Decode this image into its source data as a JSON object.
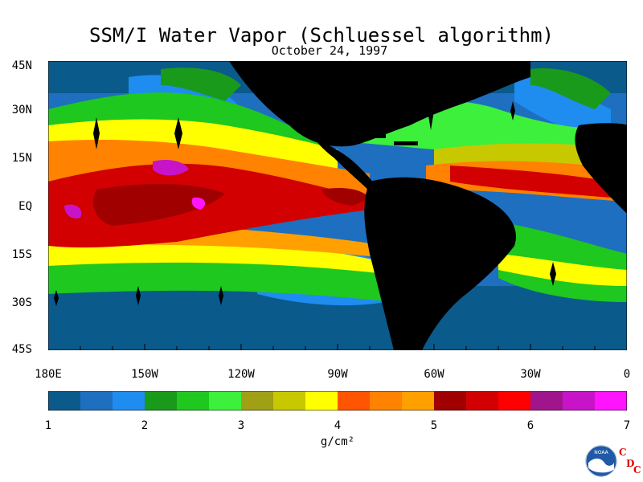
{
  "title": "SSM/I Water Vapor (Schluessel algorithm)",
  "subtitle": "October 24, 1997",
  "lat_labels": [
    "45N",
    "30N",
    "15N",
    "EQ",
    "15S",
    "30S",
    "45S"
  ],
  "lon_labels": [
    "180E",
    "150W",
    "120W",
    "90W",
    "60W",
    "30W",
    "0"
  ],
  "colorbar": {
    "colors": [
      "#0a5a8c",
      "#1e6fbf",
      "#1f8cf0",
      "#1a9a1a",
      "#1ec81e",
      "#3cf03c",
      "#a0a014",
      "#c8c800",
      "#ffff00",
      "#ff5500",
      "#ff8200",
      "#ffa000",
      "#a00000",
      "#d20000",
      "#ff0000",
      "#a0148c",
      "#c814c8",
      "#ff14ff"
    ],
    "tick_labels": [
      "1",
      "2",
      "3",
      "4",
      "5",
      "6",
      "7"
    ],
    "units": "g/cm²"
  },
  "logo": {
    "text": "NOAA",
    "letters": [
      "C",
      "D",
      "C"
    ]
  }
}
